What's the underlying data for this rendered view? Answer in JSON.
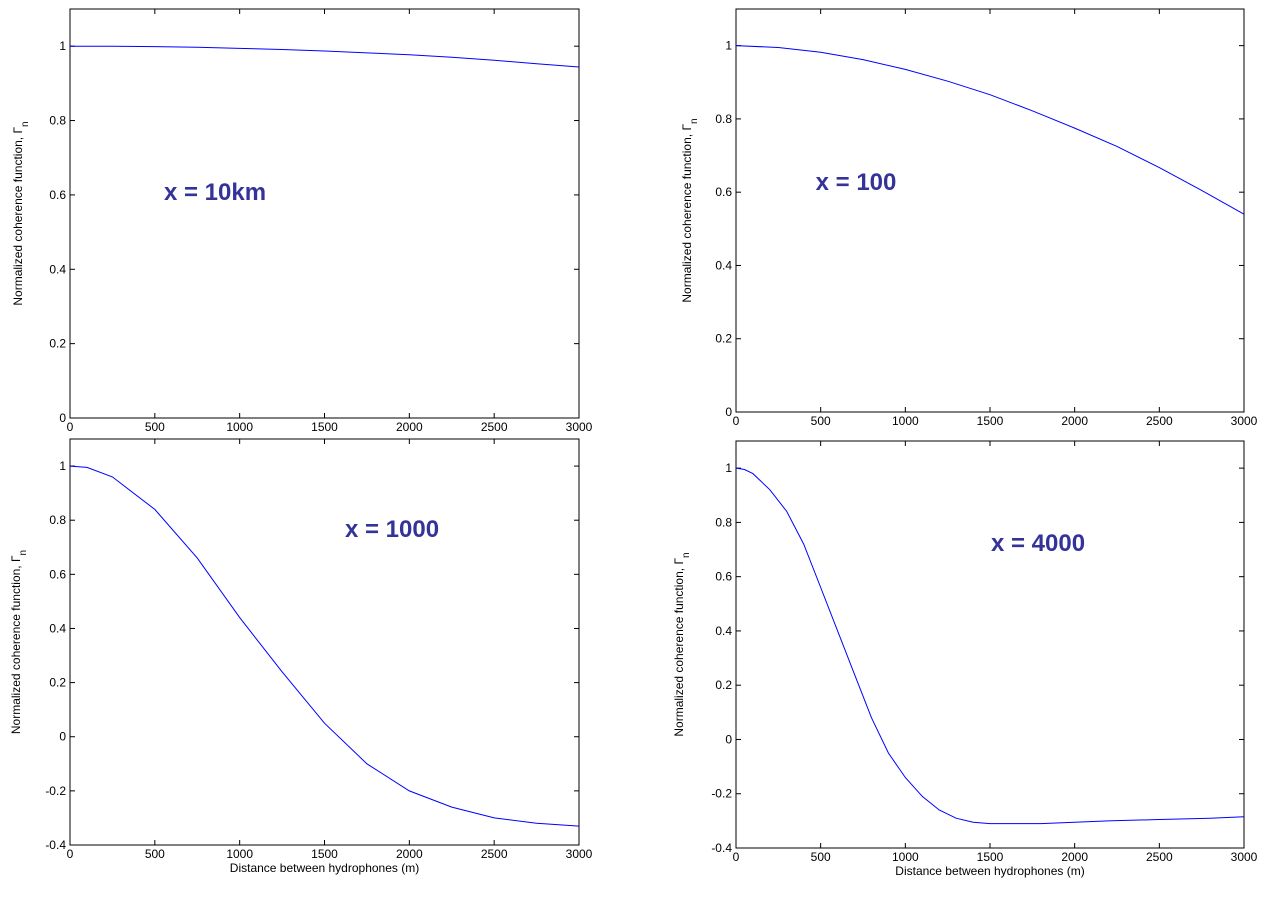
{
  "chart_data": [
    {
      "type": "line",
      "annotation": "x = 10km",
      "ylabel": "Normalized coherence function, Γ",
      "ylabel_subscript": "n",
      "xlabel": "",
      "xlim": [
        0,
        3000
      ],
      "ylim": [
        0,
        1.1
      ],
      "xticks": [
        0,
        500,
        1000,
        1500,
        2000,
        2500,
        3000
      ],
      "yticks": [
        0,
        0.2,
        0.4,
        0.6,
        0.8,
        1
      ],
      "grid": false,
      "line_color": "#0000ff",
      "annotation_color": "#333399",
      "series": [
        {
          "x": [
            0,
            250,
            500,
            750,
            1000,
            1250,
            1500,
            1750,
            2000,
            2250,
            2500,
            2750,
            3000
          ],
          "y": [
            1.0,
            1.0,
            0.999,
            0.997,
            0.994,
            0.991,
            0.987,
            0.982,
            0.977,
            0.97,
            0.962,
            0.953,
            0.944
          ]
        }
      ]
    },
    {
      "type": "line",
      "annotation": "x = 100",
      "ylabel": "Normalized coherence function, Γ",
      "ylabel_subscript": "n",
      "xlabel": "",
      "xlim": [
        0,
        3000
      ],
      "ylim": [
        0,
        1.1
      ],
      "xticks": [
        0,
        500,
        1000,
        1500,
        2000,
        2500,
        3000
      ],
      "yticks": [
        0,
        0.2,
        0.4,
        0.6,
        0.8,
        1
      ],
      "grid": false,
      "line_color": "#0000ff",
      "annotation_color": "#333399",
      "series": [
        {
          "x": [
            0,
            250,
            500,
            750,
            1000,
            1250,
            1500,
            1750,
            2000,
            2250,
            2500,
            2750,
            3000
          ],
          "y": [
            1.0,
            0.995,
            0.982,
            0.962,
            0.935,
            0.903,
            0.866,
            0.822,
            0.775,
            0.725,
            0.667,
            0.605,
            0.54
          ]
        }
      ]
    },
    {
      "type": "line",
      "annotation": "x = 1000",
      "ylabel": "Normalized coherence function, Γ",
      "ylabel_subscript": "n",
      "xlabel": "Distance between hydrophones (m)",
      "xlim": [
        0,
        3000
      ],
      "ylim": [
        -0.4,
        1.1
      ],
      "xticks": [
        0,
        500,
        1000,
        1500,
        2000,
        2500,
        3000
      ],
      "yticks": [
        -0.4,
        -0.2,
        0,
        0.2,
        0.4,
        0.6,
        0.8,
        1
      ],
      "grid": false,
      "line_color": "#0000ff",
      "annotation_color": "#333399",
      "series": [
        {
          "x": [
            0,
            100,
            250,
            500,
            750,
            1000,
            1250,
            1500,
            1750,
            2000,
            2250,
            2500,
            2750,
            3000
          ],
          "y": [
            1.0,
            0.995,
            0.96,
            0.84,
            0.66,
            0.44,
            0.24,
            0.05,
            -0.1,
            -0.2,
            -0.26,
            -0.3,
            -0.32,
            -0.33
          ]
        }
      ]
    },
    {
      "type": "line",
      "annotation": "x =  4000",
      "ylabel": "Normalized coherence function, Γ",
      "ylabel_subscript": "n",
      "xlabel": "Distance between hydrophones (m)",
      "xlim": [
        0,
        3000
      ],
      "ylim": [
        -0.4,
        1.1
      ],
      "xticks": [
        0,
        500,
        1000,
        1500,
        2000,
        2500,
        3000
      ],
      "yticks": [
        -0.4,
        -0.2,
        0,
        0.2,
        0.4,
        0.6,
        0.8,
        1
      ],
      "grid": false,
      "line_color": "#0000ff",
      "annotation_color": "#333399",
      "series": [
        {
          "x": [
            0,
            50,
            100,
            200,
            300,
            400,
            500,
            600,
            700,
            800,
            900,
            1000,
            1100,
            1200,
            1300,
            1400,
            1500,
            1600,
            1700,
            1800,
            2000,
            2200,
            2500,
            2800,
            3000
          ],
          "y": [
            1.0,
            0.995,
            0.98,
            0.92,
            0.84,
            0.72,
            0.56,
            0.4,
            0.24,
            0.08,
            -0.05,
            -0.14,
            -0.21,
            -0.26,
            -0.29,
            -0.305,
            -0.31,
            -0.31,
            -0.31,
            -0.31,
            -0.305,
            -0.3,
            -0.295,
            -0.29,
            -0.285
          ]
        }
      ]
    }
  ]
}
